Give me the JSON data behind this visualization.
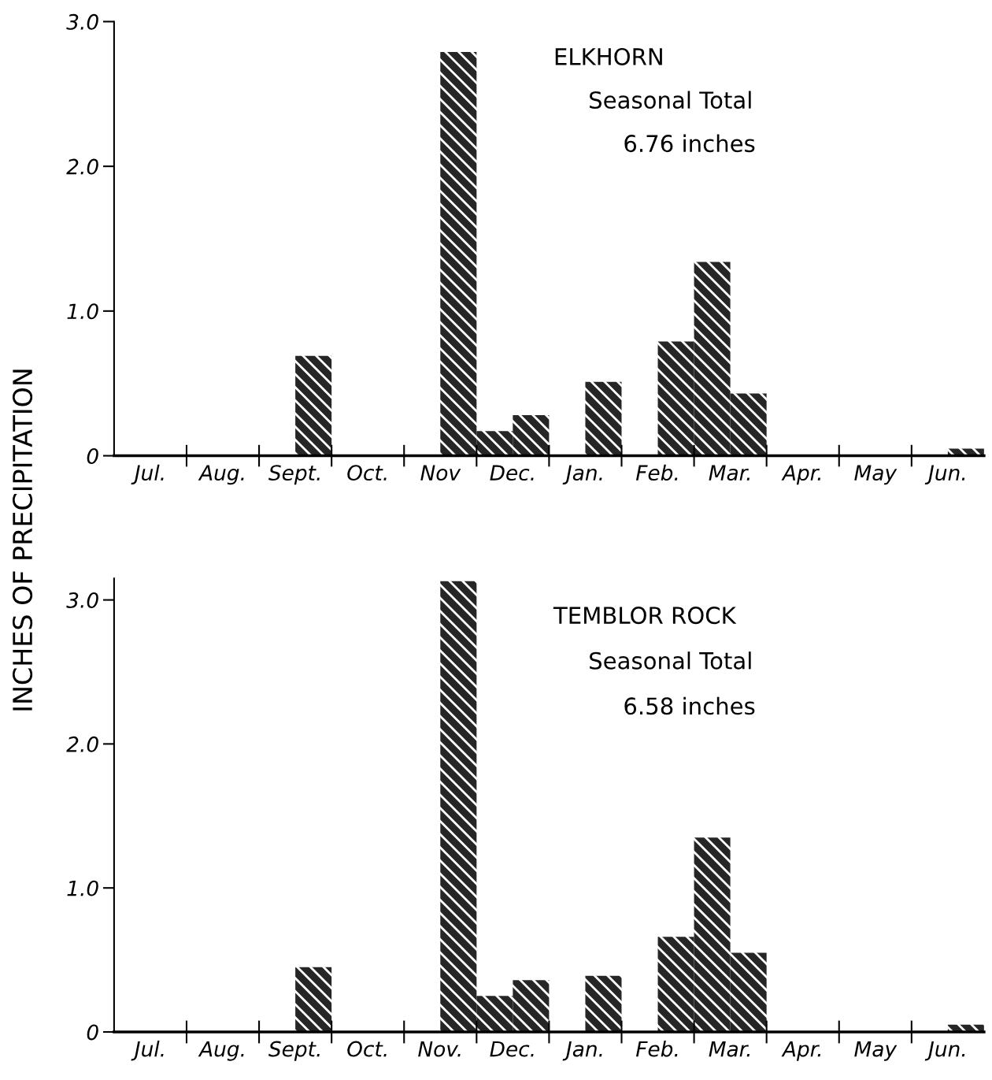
{
  "chart_data": [
    {
      "type": "bar",
      "title": "ELKHORN",
      "ylabel": "INCHES OF PRECIPITATION",
      "annotations": [
        "Seasonal Total",
        "6.76 inches"
      ],
      "categories": [
        "Jul.",
        "Aug.",
        "Sept.",
        "Oct.",
        "Nov",
        "Dec.",
        "Jan.",
        "Feb.",
        "Mar.",
        "Apr.",
        "May",
        "Jun."
      ],
      "series": [
        {
          "color": "#262626",
          "values": [
            0,
            0,
            0,
            0,
            0,
            0.17,
            0,
            0,
            1.34,
            0,
            0,
            0
          ]
        },
        {
          "color": "#262626",
          "values": [
            0,
            0,
            0.69,
            0,
            2.79,
            0.28,
            0.51,
            0.79,
            0.43,
            0,
            0,
            0.05
          ]
        }
      ],
      "ylim": [
        0,
        3.0
      ],
      "yticks": [
        0,
        {
          "value": 1,
          "label": "1.0"
        },
        {
          "value": 2,
          "label": "2.0"
        },
        {
          "value": 3,
          "label": "3.0"
        }
      ],
      "grid": false,
      "legend": false
    },
    {
      "type": "bar",
      "title": "TEMBLOR ROCK",
      "annotations": [
        "Seasonal Total",
        "6.58 inches"
      ],
      "categories": [
        "Jul.",
        "Aug.",
        "Sept.",
        "Oct.",
        "Nov.",
        "Dec.",
        "Jan.",
        "Feb.",
        "Mar.",
        "Apr.",
        "May",
        "Jun."
      ],
      "series": [
        {
          "color": "#262626",
          "values": [
            0,
            0,
            0,
            0,
            0,
            0.25,
            0,
            0,
            1.35,
            0,
            0,
            0
          ]
        },
        {
          "color": "#262626",
          "values": [
            0,
            0,
            0.45,
            0,
            3.13,
            0.36,
            0.39,
            0.66,
            0.55,
            0,
            0,
            0.05
          ]
        }
      ],
      "ylim": [
        0,
        3.15
      ],
      "yticks": [
        0,
        {
          "value": 1,
          "label": "1.0"
        },
        {
          "value": 2,
          "label": "2.0"
        },
        {
          "value": 3,
          "label": "3.0"
        }
      ],
      "grid": false,
      "legend": false
    }
  ]
}
